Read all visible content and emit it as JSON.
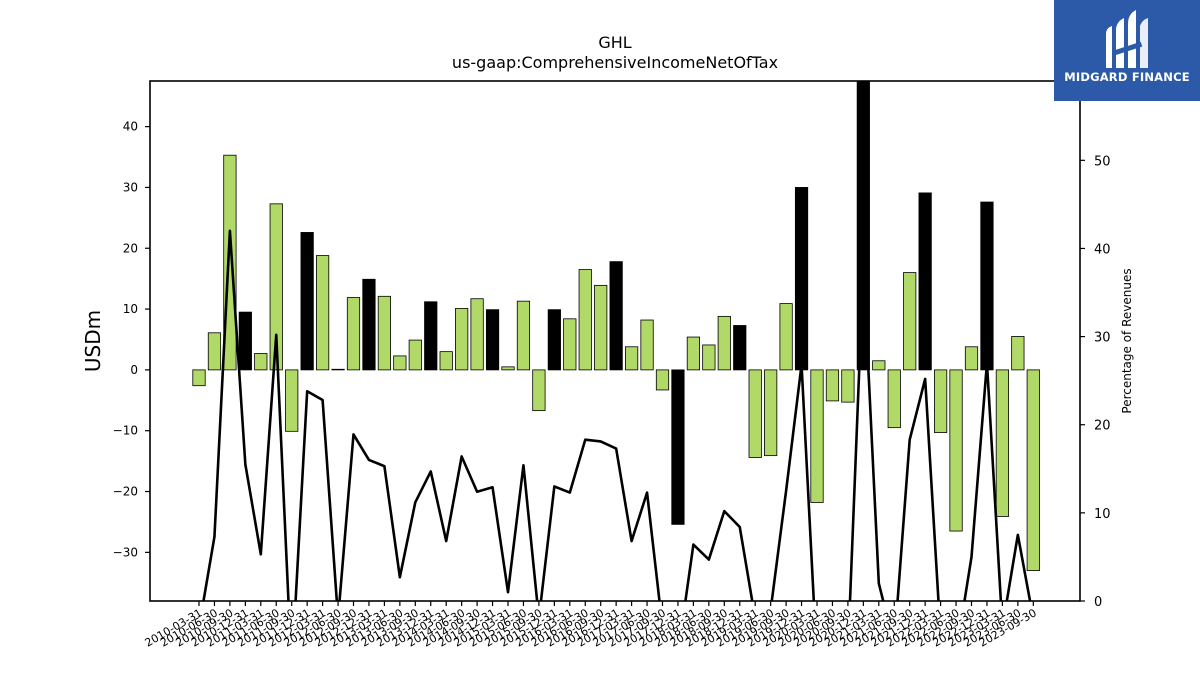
{
  "brand": {
    "name": "MIDGARD FINANCE",
    "logo_icon": "midgard-m-icon",
    "background": "#2d5aa8"
  },
  "chart_data": {
    "type": "bar",
    "title": "GHL",
    "subtitle": "us-gaap:ComprehensiveIncomeNetOfTax",
    "ylabel": "USDm",
    "y2label": "Percentage of Revenues",
    "ylim": [
      -38,
      47.5
    ],
    "y2lim": [
      0,
      59
    ],
    "yticks": [
      -30,
      -20,
      -10,
      0,
      10,
      20,
      30,
      40
    ],
    "y2ticks": [
      0,
      10,
      20,
      30,
      40,
      50
    ],
    "colors": {
      "positive_quarter": "#b0d968",
      "year_end": "#000000",
      "line": "#000000"
    },
    "x_labels": [
      "2010-03-31",
      "2010-06-30",
      "2010-09-30",
      "2010-12-31",
      "2011-03-31",
      "2011-06-30",
      "2011-09-30",
      "2011-12-31",
      "2012-03-31",
      "2012-06-30",
      "2012-09-30",
      "2012-12-31",
      "2013-03-31",
      "2013-06-30",
      "2013-09-30",
      "2013-12-31",
      "2014-03-31",
      "2014-06-30",
      "2014-09-30",
      "2014-12-31",
      "2015-03-31",
      "2015-06-30",
      "2015-09-30",
      "2015-12-31",
      "2016-03-31",
      "2016-06-30",
      "2016-09-30",
      "2016-12-31",
      "2017-03-31",
      "2017-06-30",
      "2017-09-30",
      "2017-12-31",
      "2018-03-31",
      "2018-06-30",
      "2018-09-30",
      "2018-12-31",
      "2019-03-31",
      "2019-06-30",
      "2019-09-30",
      "2019-12-31",
      "2020-03-31",
      "2020-06-30",
      "2020-09-30",
      "2020-12-31",
      "2021-03-31",
      "2021-06-30",
      "2021-09-30",
      "2021-12-31",
      "2022-03-31",
      "2022-06-30",
      "2022-09-30",
      "2022-12-31",
      "2023-03-31",
      "2023-06-30",
      "2023-09-30"
    ],
    "bars": [
      -2.6,
      6.1,
      35.3,
      9.5,
      2.7,
      27.3,
      -10.1,
      22.6,
      18.8,
      0.1,
      11.9,
      14.9,
      12.1,
      2.3,
      4.9,
      11.2,
      3.0,
      10.1,
      11.7,
      9.9,
      0.5,
      11.3,
      -6.7,
      9.9,
      8.4,
      16.5,
      13.9,
      17.8,
      3.8,
      8.2,
      -3.3,
      -25.4,
      5.4,
      4.1,
      8.8,
      7.3,
      -14.4,
      -14.1,
      10.9,
      30.0,
      -21.8,
      -5.1,
      -5.3,
      47.5,
      1.5,
      -9.5,
      16.0,
      29.1,
      -10.3,
      -26.5,
      3.8,
      27.6,
      -24.1,
      5.5,
      -33.0
    ],
    "year_end": [
      false,
      false,
      false,
      true,
      false,
      false,
      false,
      true,
      false,
      false,
      false,
      true,
      false,
      false,
      false,
      true,
      false,
      false,
      false,
      true,
      false,
      false,
      false,
      true,
      false,
      false,
      false,
      true,
      false,
      false,
      false,
      true,
      false,
      false,
      false,
      true,
      false,
      false,
      false,
      true,
      false,
      false,
      false,
      true,
      false,
      false,
      false,
      true,
      false,
      false,
      false,
      true,
      false,
      false,
      false
    ],
    "pct_of_revenues": [
      -3,
      7.3,
      42,
      15.5,
      5.3,
      30.2,
      -8,
      23.8,
      22.8,
      -2,
      18.9,
      16,
      15.3,
      2.7,
      11.2,
      14.7,
      6.8,
      16.4,
      12.4,
      12.9,
      1,
      15.4,
      -2,
      13,
      12.3,
      18.3,
      18.1,
      17.3,
      6.8,
      12.3,
      -3,
      -6,
      6.4,
      4.7,
      10.2,
      8.4,
      -2,
      -1,
      12.5,
      26.8,
      -7,
      -4,
      -6,
      38,
      2,
      -5,
      18.3,
      25.2,
      -4,
      -6,
      5,
      27,
      -3,
      7.5,
      -2
    ]
  }
}
